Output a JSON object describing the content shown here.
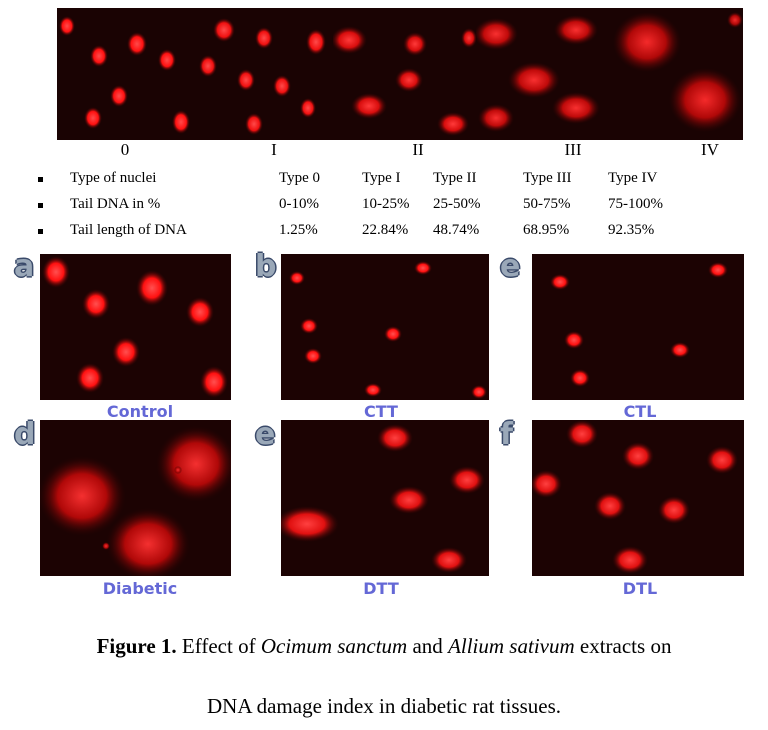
{
  "strip": {
    "type_labels": [
      "0",
      "I",
      "II",
      "III",
      "IV"
    ]
  },
  "table": {
    "rows": [
      {
        "label": "Type of nuclei",
        "cells": [
          "Type 0",
          "Type I",
          "Type II",
          "Type III",
          "Type IV"
        ]
      },
      {
        "label": "Tail DNA  in %",
        "cells": [
          "0-10%",
          "10-25%",
          "25-50%",
          "50-75%",
          "75-100%"
        ]
      },
      {
        "label": "Tail length of DNA",
        "cells": [
          "1.25%",
          "22.84%",
          "48.74%",
          "68.95%",
          "92.35%"
        ]
      }
    ]
  },
  "panels": [
    {
      "letter": "a",
      "caption": "Control"
    },
    {
      "letter": "b",
      "caption": "CTT"
    },
    {
      "letter": "e",
      "caption": "CTL"
    },
    {
      "letter": "d",
      "caption": "Diabetic"
    },
    {
      "letter": "e",
      "caption": "DTT"
    },
    {
      "letter": "f",
      "caption": "DTL"
    }
  ],
  "figure": {
    "label": "Figure 1.",
    "text_1": " Effect of ",
    "species_1": "Ocimum sanctum",
    "text_2": " and ",
    "species_2": "Allium sativum",
    "text_3": " extracts on",
    "line_2": "DNA damage index in diabetic rat tissues."
  },
  "colors": {
    "nucleus": "#ff1a1a",
    "background": "#1c0303",
    "panel_caption": "#6468d6",
    "panel_letter": "#9aa8b8"
  }
}
